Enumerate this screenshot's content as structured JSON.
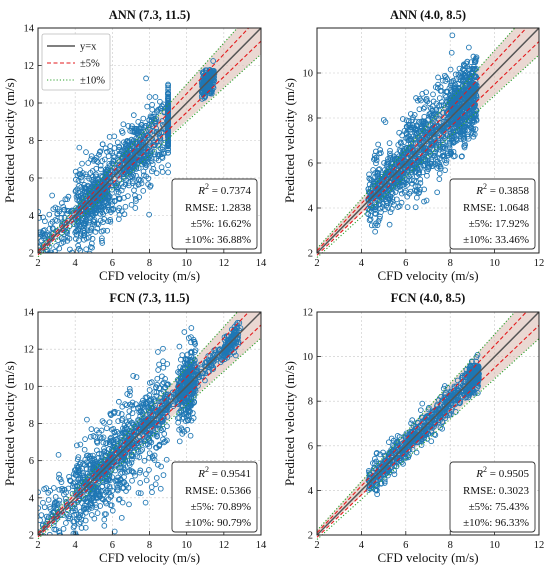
{
  "figure": {
    "legend": {
      "items": [
        {
          "label": "y=x",
          "color": "#555555",
          "style": "solid"
        },
        {
          "label": "±5%",
          "color": "#e31a1c",
          "style": "dashed"
        },
        {
          "label": "±10%",
          "color": "#2ca02c",
          "style": "dotted"
        }
      ]
    },
    "colors": {
      "scatter": "#1f77b4",
      "band": "#d9b8ad"
    }
  },
  "chart_data": [
    {
      "type": "scatter",
      "title": "ANN (7.3, 11.5)",
      "xlabel": "CFD velocity (m/s)",
      "ylabel": "Predicted velocity (m/s)",
      "xlim": [
        2,
        14
      ],
      "ylim": [
        2,
        14
      ],
      "xticks": [
        2,
        4,
        6,
        8,
        10,
        12,
        14
      ],
      "yticks": [
        2,
        4,
        6,
        8,
        10,
        12,
        14
      ],
      "grid": true,
      "legend_position": "top-left",
      "stats": {
        "r2_value": "0.7374",
        "rmse": "RMSE: 1.2838",
        "pm5": "±5%: 16.62%",
        "pm10": "±10%: 36.88%"
      },
      "cloud": [
        [
          2.0,
          7.6,
          6.0,
          0.9,
          -0.15,
          240
        ],
        [
          4.0,
          6.6,
          6.4,
          1.2,
          0.18,
          320
        ],
        [
          6.5,
          8.1,
          8.8,
          1.3,
          0.35,
          260
        ],
        [
          9.0,
          9.5,
          9.0,
          0.8,
          0.25,
          220
        ],
        [
          11.5,
          10.6,
          10.8,
          0.35,
          0.05,
          180
        ],
        [
          6.5,
          5.7,
          7.8,
          0.45,
          0.1,
          120
        ],
        [
          4.6,
          5.3,
          5.8,
          0.3,
          0.2,
          60
        ]
      ]
    },
    {
      "type": "scatter",
      "title": "ANN (4.0, 8.5)",
      "xlabel": "CFD velocity (m/s)",
      "ylabel": "Predicted velocity (m/s)",
      "xlim": [
        2,
        12
      ],
      "ylim": [
        2,
        12
      ],
      "xticks": [
        2,
        4,
        6,
        8,
        10,
        12
      ],
      "yticks": [
        2,
        4,
        6,
        8,
        10
      ],
      "grid": true,
      "stats": {
        "r2_value": "0.3858",
        "rmse": "RMSE: 1.0648",
        "pm5": "±5%: 17.92%",
        "pm10": "±10%: 33.46%"
      },
      "cloud": [
        [
          4.3,
          4.3,
          6.0,
          0.5,
          0.8,
          180
        ],
        [
          4.3,
          5.5,
          9.2,
          0.9,
          0.95,
          520
        ],
        [
          6.0,
          7.0,
          9.2,
          1.0,
          0.8,
          380
        ],
        [
          8.0,
          9.2,
          9.2,
          0.8,
          0.6,
          260
        ]
      ]
    },
    {
      "type": "scatter",
      "title": "FCN (7.3, 11.5)",
      "xlabel": "CFD velocity (m/s)",
      "ylabel": "Predicted velocity (m/s)",
      "xlim": [
        2,
        14
      ],
      "ylim": [
        2,
        14
      ],
      "xticks": [
        2,
        4,
        6,
        8,
        10,
        12,
        14
      ],
      "yticks": [
        2,
        4,
        6,
        8,
        10,
        12,
        14
      ],
      "grid": true,
      "stats": {
        "r2_value": "0.9541",
        "rmse": "RMSE: 0.5366",
        "pm5": "±5%: 70.89%",
        "pm10": "±10%: 90.79%"
      },
      "cloud": [
        [
          2.0,
          7.2,
          6.0,
          1.0,
          -0.1,
          260
        ],
        [
          4.0,
          6.6,
          6.8,
          1.3,
          0.2,
          320
        ],
        [
          6.5,
          8.0,
          9.0,
          1.4,
          0.45,
          300
        ],
        [
          9.5,
          10.0,
          10.5,
          1.0,
          0.6,
          280
        ],
        [
          5.0,
          5.4,
          12.9,
          0.3,
          0.95,
          320
        ],
        [
          12.0,
          12.8,
          12.8,
          0.3,
          0.7,
          80
        ]
      ]
    },
    {
      "type": "scatter",
      "title": "FCN (4.0, 8.5)",
      "xlabel": "CFD velocity (m/s)",
      "ylabel": "Predicted velocity (m/s)",
      "xlim": [
        2,
        12
      ],
      "ylim": [
        2,
        12
      ],
      "xticks": [
        2,
        4,
        6,
        8,
        10,
        12
      ],
      "yticks": [
        2,
        4,
        6,
        8,
        10,
        12
      ],
      "grid": true,
      "stats": {
        "r2_value": "0.9505",
        "rmse": "RMSE: 0.3023",
        "pm5": "±5%: 75.43%",
        "pm10": "±10%: 96.33%"
      },
      "cloud": [
        [
          4.3,
          4.3,
          9.3,
          0.35,
          1.0,
          600
        ],
        [
          8.8,
          9.3,
          9.3,
          0.35,
          0.85,
          120
        ]
      ]
    }
  ]
}
